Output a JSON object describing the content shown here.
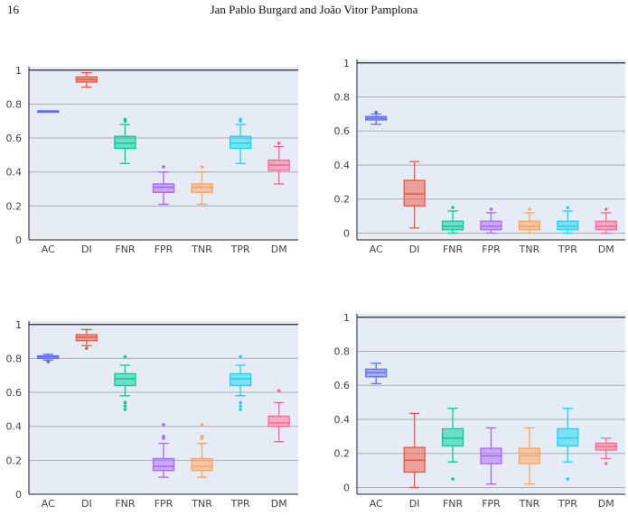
{
  "header": {
    "page_number": "16",
    "authors": "Jan Pablo Burgard and João Vitor Pamplona"
  },
  "colors": {
    "AC": "#636efa",
    "DI": "#ef553b",
    "FNR": "#00cc96",
    "FPR": "#ab63fa",
    "TNR": "#ffa15a",
    "TPR": "#19d3f3",
    "DM": "#ff6692",
    "plot_background": "#e5ecf6",
    "gridline": "#a9aeb5"
  },
  "chart_data": [
    {
      "type": "box",
      "categories": [
        "AC",
        "DI",
        "FNR",
        "FPR",
        "TNR",
        "TPR",
        "DM"
      ],
      "ylim": [
        0,
        1.02
      ],
      "yticks": [
        "0",
        "0.2",
        "0.4",
        "0.6",
        "0.8",
        "1"
      ],
      "grid": true,
      "boxes": [
        {
          "category": "AC",
          "min": 0.758,
          "q1": 0.758,
          "median": 0.759,
          "q3": 0.76,
          "max": 0.76,
          "outliers": []
        },
        {
          "category": "DI",
          "min": 0.9,
          "q1": 0.93,
          "median": 0.945,
          "q3": 0.96,
          "max": 0.985,
          "outliers": []
        },
        {
          "category": "FNR",
          "min": 0.45,
          "q1": 0.54,
          "median": 0.57,
          "q3": 0.61,
          "max": 0.68,
          "outliers": [
            0.7,
            0.71
          ]
        },
        {
          "category": "FPR",
          "min": 0.21,
          "q1": 0.28,
          "median": 0.31,
          "q3": 0.33,
          "max": 0.4,
          "outliers": [
            0.43
          ]
        },
        {
          "category": "TNR",
          "min": 0.21,
          "q1": 0.28,
          "median": 0.31,
          "q3": 0.33,
          "max": 0.4,
          "outliers": [
            0.43
          ]
        },
        {
          "category": "TPR",
          "min": 0.45,
          "q1": 0.54,
          "median": 0.57,
          "q3": 0.61,
          "max": 0.68,
          "outliers": [
            0.7,
            0.71
          ]
        },
        {
          "category": "DM",
          "min": 0.33,
          "q1": 0.41,
          "median": 0.44,
          "q3": 0.47,
          "max": 0.55,
          "outliers": [
            0.57
          ]
        }
      ]
    },
    {
      "type": "box",
      "categories": [
        "AC",
        "DI",
        "FNR",
        "FPR",
        "TNR",
        "TPR",
        "DM"
      ],
      "ylim": [
        -0.04,
        1.02
      ],
      "yticks": [
        "0",
        "0.2",
        "0.4",
        "0.6",
        "0.8",
        "1"
      ],
      "grid": true,
      "boxes": [
        {
          "category": "AC",
          "min": 0.64,
          "q1": 0.665,
          "median": 0.675,
          "q3": 0.685,
          "max": 0.7,
          "outliers": [
            0.71
          ]
        },
        {
          "category": "DI",
          "min": 0.03,
          "q1": 0.16,
          "median": 0.23,
          "q3": 0.31,
          "max": 0.42,
          "outliers": []
        },
        {
          "category": "FNR",
          "min": 0.0,
          "q1": 0.02,
          "median": 0.04,
          "q3": 0.07,
          "max": 0.13,
          "outliers": [
            0.15
          ]
        },
        {
          "category": "FPR",
          "min": 0.0,
          "q1": 0.02,
          "median": 0.04,
          "q3": 0.07,
          "max": 0.12,
          "outliers": [
            0.14
          ]
        },
        {
          "category": "TNR",
          "min": 0.0,
          "q1": 0.02,
          "median": 0.04,
          "q3": 0.07,
          "max": 0.12,
          "outliers": [
            0.14
          ]
        },
        {
          "category": "TPR",
          "min": 0.0,
          "q1": 0.02,
          "median": 0.04,
          "q3": 0.07,
          "max": 0.13,
          "outliers": [
            0.15
          ]
        },
        {
          "category": "DM",
          "min": 0.0,
          "q1": 0.02,
          "median": 0.04,
          "q3": 0.07,
          "max": 0.12,
          "outliers": [
            0.14
          ]
        }
      ]
    },
    {
      "type": "box",
      "categories": [
        "AC",
        "DI",
        "FNR",
        "FPR",
        "TNR",
        "TPR",
        "DM"
      ],
      "ylim": [
        0,
        1.02
      ],
      "yticks": [
        "0",
        "0.2",
        "0.4",
        "0.6",
        "0.8",
        "1"
      ],
      "grid": true,
      "boxes": [
        {
          "category": "AC",
          "min": 0.79,
          "q1": 0.8,
          "median": 0.81,
          "q3": 0.815,
          "max": 0.825,
          "outliers": [
            0.78
          ]
        },
        {
          "category": "DI",
          "min": 0.875,
          "q1": 0.905,
          "median": 0.925,
          "q3": 0.94,
          "max": 0.97,
          "outliers": [
            0.86
          ]
        },
        {
          "category": "FNR",
          "min": 0.58,
          "q1": 0.64,
          "median": 0.68,
          "q3": 0.71,
          "max": 0.76,
          "outliers": [
            0.81,
            0.54,
            0.52,
            0.5
          ]
        },
        {
          "category": "FPR",
          "min": 0.1,
          "q1": 0.14,
          "median": 0.165,
          "q3": 0.21,
          "max": 0.3,
          "outliers": [
            0.33,
            0.34,
            0.41
          ]
        },
        {
          "category": "TNR",
          "min": 0.1,
          "q1": 0.14,
          "median": 0.165,
          "q3": 0.21,
          "max": 0.3,
          "outliers": [
            0.33,
            0.34,
            0.41
          ]
        },
        {
          "category": "TPR",
          "min": 0.58,
          "q1": 0.64,
          "median": 0.68,
          "q3": 0.71,
          "max": 0.76,
          "outliers": [
            0.81,
            0.54,
            0.52,
            0.5
          ]
        },
        {
          "category": "DM",
          "min": 0.31,
          "q1": 0.4,
          "median": 0.42,
          "q3": 0.46,
          "max": 0.54,
          "outliers": [
            0.61
          ]
        }
      ]
    },
    {
      "type": "box",
      "categories": [
        "AC",
        "DI",
        "FNR",
        "FPR",
        "TNR",
        "TPR",
        "DM"
      ],
      "ylim": [
        -0.04,
        1.02
      ],
      "yticks": [
        "0",
        "0.2",
        "0.4",
        "0.6",
        "0.8",
        "1"
      ],
      "grid": true,
      "boxes": [
        {
          "category": "AC",
          "min": 0.61,
          "q1": 0.65,
          "median": 0.675,
          "q3": 0.695,
          "max": 0.73,
          "outliers": []
        },
        {
          "category": "DI",
          "min": 0.0,
          "q1": 0.09,
          "median": 0.16,
          "q3": 0.235,
          "max": 0.435,
          "outliers": []
        },
        {
          "category": "FNR",
          "min": 0.15,
          "q1": 0.245,
          "median": 0.29,
          "q3": 0.345,
          "max": 0.465,
          "outliers": [
            0.05
          ]
        },
        {
          "category": "FPR",
          "min": 0.02,
          "q1": 0.14,
          "median": 0.185,
          "q3": 0.23,
          "max": 0.35,
          "outliers": []
        },
        {
          "category": "TNR",
          "min": 0.02,
          "q1": 0.14,
          "median": 0.185,
          "q3": 0.23,
          "max": 0.35,
          "outliers": []
        },
        {
          "category": "TPR",
          "min": 0.15,
          "q1": 0.245,
          "median": 0.29,
          "q3": 0.345,
          "max": 0.465,
          "outliers": [
            0.05
          ]
        },
        {
          "category": "DM",
          "min": 0.17,
          "q1": 0.22,
          "median": 0.24,
          "q3": 0.26,
          "max": 0.29,
          "outliers": [
            0.14
          ]
        }
      ]
    }
  ]
}
